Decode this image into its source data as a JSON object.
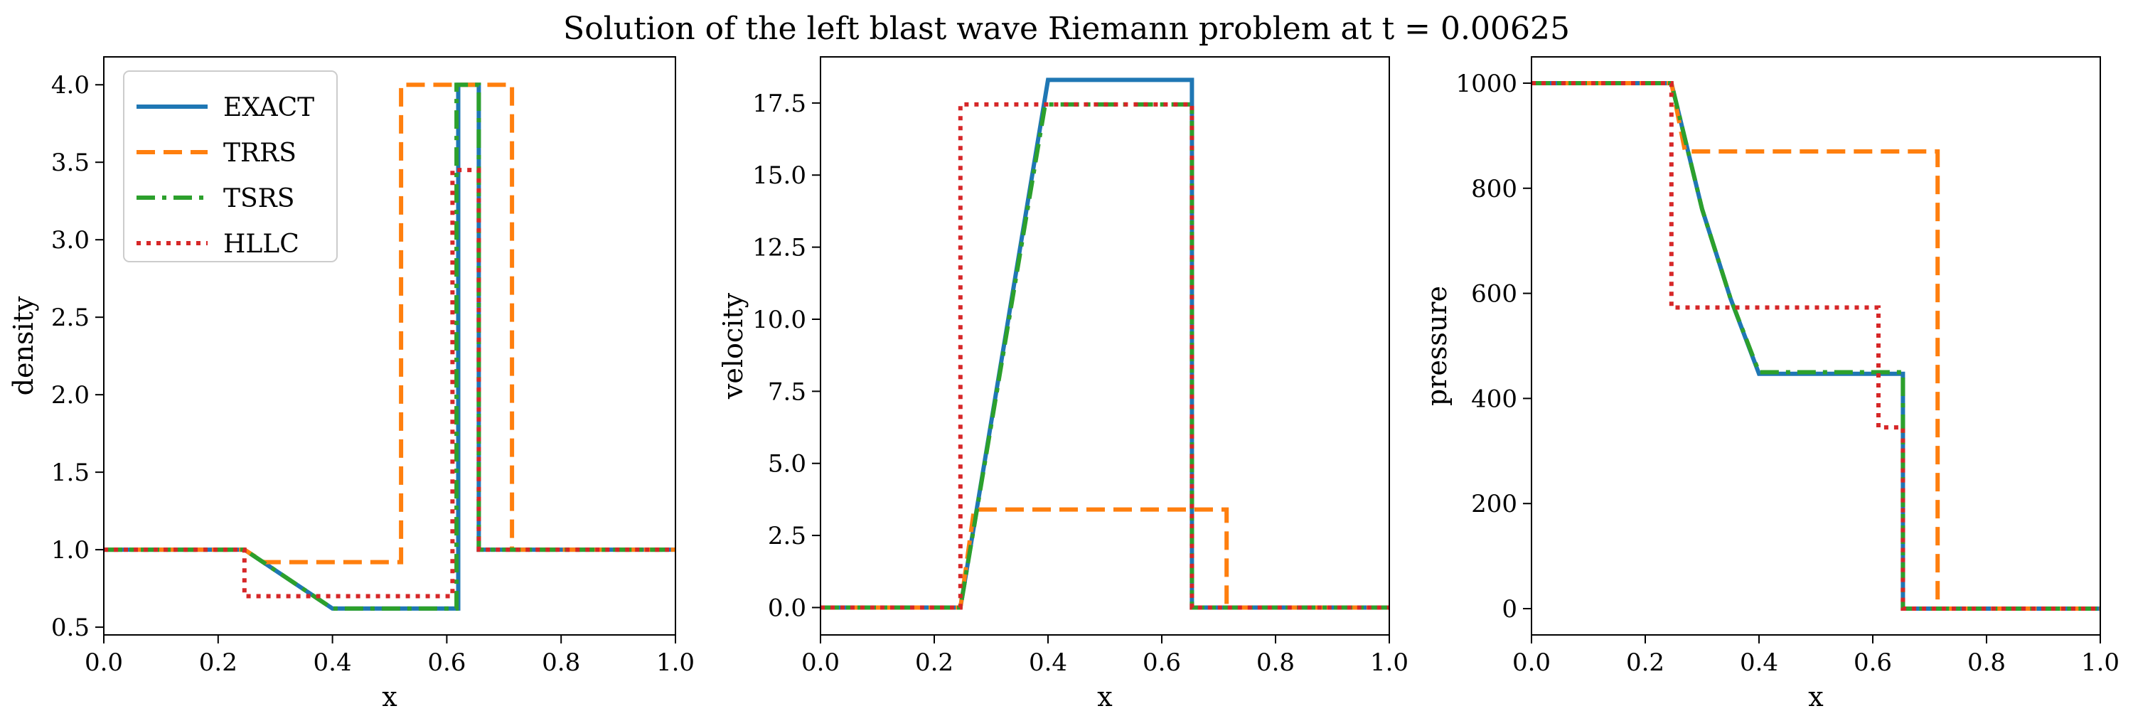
{
  "figure_title": "Solution of the left blast wave Riemann problem at t = 0.00625",
  "legend": {
    "placement": "upper-left of first panel",
    "entries": [
      {
        "label": "EXACT",
        "color": "#1f77b4",
        "style": "solid"
      },
      {
        "label": "TRRS",
        "color": "#ff7f0e",
        "style": "dashed"
      },
      {
        "label": "TSRS",
        "color": "#2ca02c",
        "style": "dashdot"
      },
      {
        "label": "HLLC",
        "color": "#d62728",
        "style": "dotted"
      }
    ]
  },
  "chart_data": [
    {
      "type": "line",
      "xlabel": "x",
      "ylabel": "density",
      "xlim": [
        0.0,
        1.0
      ],
      "ylim": [
        0.45,
        4.18
      ],
      "xticks": [
        "0.0",
        "0.2",
        "0.4",
        "0.6",
        "0.8",
        "1.0"
      ],
      "yticks": [
        "0.5",
        "1.0",
        "1.5",
        "2.0",
        "2.5",
        "3.0",
        "3.5",
        "4.0"
      ],
      "series": [
        {
          "name": "EXACT",
          "color": "#1f77b4",
          "style": "solid",
          "x": [
            0.0,
            0.246,
            0.4,
            0.62,
            0.62,
            0.656,
            0.656,
            1.0
          ],
          "y": [
            1.0,
            1.0,
            0.62,
            0.62,
            4.0,
            4.0,
            1.0,
            1.0
          ]
        },
        {
          "name": "TRRS",
          "color": "#ff7f0e",
          "style": "dashed",
          "x": [
            0.0,
            0.246,
            0.28,
            0.52,
            0.52,
            0.714,
            0.714,
            1.0
          ],
          "y": [
            1.0,
            1.0,
            0.92,
            0.92,
            4.0,
            4.0,
            1.0,
            1.0
          ]
        },
        {
          "name": "TSRS",
          "color": "#2ca02c",
          "style": "dashdot",
          "x": [
            0.0,
            0.246,
            0.4,
            0.617,
            0.617,
            0.656,
            0.656,
            1.0
          ],
          "y": [
            1.0,
            1.0,
            0.62,
            0.62,
            4.0,
            4.0,
            1.0,
            1.0
          ]
        },
        {
          "name": "HLLC",
          "color": "#d62728",
          "style": "dotted",
          "x": [
            0.0,
            0.246,
            0.246,
            0.61,
            0.61,
            0.635,
            0.635,
            0.656,
            0.656,
            1.0
          ],
          "y": [
            1.0,
            1.0,
            0.7,
            0.7,
            3.45,
            3.45,
            3.45,
            3.45,
            1.0,
            1.0
          ]
        }
      ]
    },
    {
      "type": "line",
      "xlabel": "x",
      "ylabel": "velocity",
      "xlim": [
        0.0,
        1.0
      ],
      "ylim": [
        -0.95,
        19.1
      ],
      "xticks": [
        "0.0",
        "0.2",
        "0.4",
        "0.6",
        "0.8",
        "1.0"
      ],
      "yticks": [
        "0.0",
        "2.5",
        "5.0",
        "7.5",
        "10.0",
        "12.5",
        "15.0",
        "17.5"
      ],
      "series": [
        {
          "name": "EXACT",
          "color": "#1f77b4",
          "style": "solid",
          "x": [
            0.0,
            0.246,
            0.4,
            0.653,
            0.653,
            1.0
          ],
          "y": [
            0.0,
            0.0,
            18.3,
            18.3,
            0.0,
            0.0
          ]
        },
        {
          "name": "TRRS",
          "color": "#ff7f0e",
          "style": "dashed",
          "x": [
            0.0,
            0.246,
            0.27,
            0.714,
            0.714,
            1.0
          ],
          "y": [
            0.0,
            0.0,
            3.4,
            3.4,
            0.0,
            0.0
          ]
        },
        {
          "name": "TSRS",
          "color": "#2ca02c",
          "style": "dashdot",
          "x": [
            0.0,
            0.246,
            0.395,
            0.653,
            0.653,
            1.0
          ],
          "y": [
            0.0,
            0.0,
            17.45,
            17.45,
            0.0,
            0.0
          ]
        },
        {
          "name": "HLLC",
          "color": "#d62728",
          "style": "dotted",
          "x": [
            0.0,
            0.246,
            0.246,
            0.653,
            0.653,
            1.0
          ],
          "y": [
            0.0,
            0.0,
            17.45,
            17.45,
            0.0,
            0.0
          ]
        }
      ]
    },
    {
      "type": "line",
      "xlabel": "x",
      "ylabel": "pressure",
      "xlim": [
        0.0,
        1.0
      ],
      "ylim": [
        -50,
        1050
      ],
      "xticks": [
        "0.0",
        "0.2",
        "0.4",
        "0.6",
        "0.8",
        "1.0"
      ],
      "yticks": [
        "0",
        "200",
        "400",
        "600",
        "800",
        "1000"
      ],
      "series": [
        {
          "name": "EXACT",
          "color": "#1f77b4",
          "style": "solid",
          "x": [
            0.0,
            0.246,
            0.3,
            0.35,
            0.4,
            0.653,
            0.653,
            1.0
          ],
          "y": [
            1000,
            1000,
            760,
            590,
            447,
            447,
            0,
            0
          ]
        },
        {
          "name": "TRRS",
          "color": "#ff7f0e",
          "style": "dashed",
          "x": [
            0.0,
            0.246,
            0.27,
            0.714,
            0.714,
            1.0
          ],
          "y": [
            1000,
            1000,
            870,
            870,
            0,
            0
          ]
        },
        {
          "name": "TSRS",
          "color": "#2ca02c",
          "style": "dashdot",
          "x": [
            0.0,
            0.246,
            0.3,
            0.35,
            0.4,
            0.653,
            0.653,
            1.0
          ],
          "y": [
            1000,
            1000,
            760,
            590,
            450,
            450,
            0,
            0
          ]
        },
        {
          "name": "HLLC",
          "color": "#d62728",
          "style": "dotted",
          "x": [
            0.0,
            0.246,
            0.246,
            0.61,
            0.61,
            0.63,
            0.63,
            0.653,
            0.653,
            1.0
          ],
          "y": [
            1000,
            1000,
            573,
            573,
            345,
            345,
            345,
            345,
            0,
            0
          ]
        }
      ]
    }
  ]
}
